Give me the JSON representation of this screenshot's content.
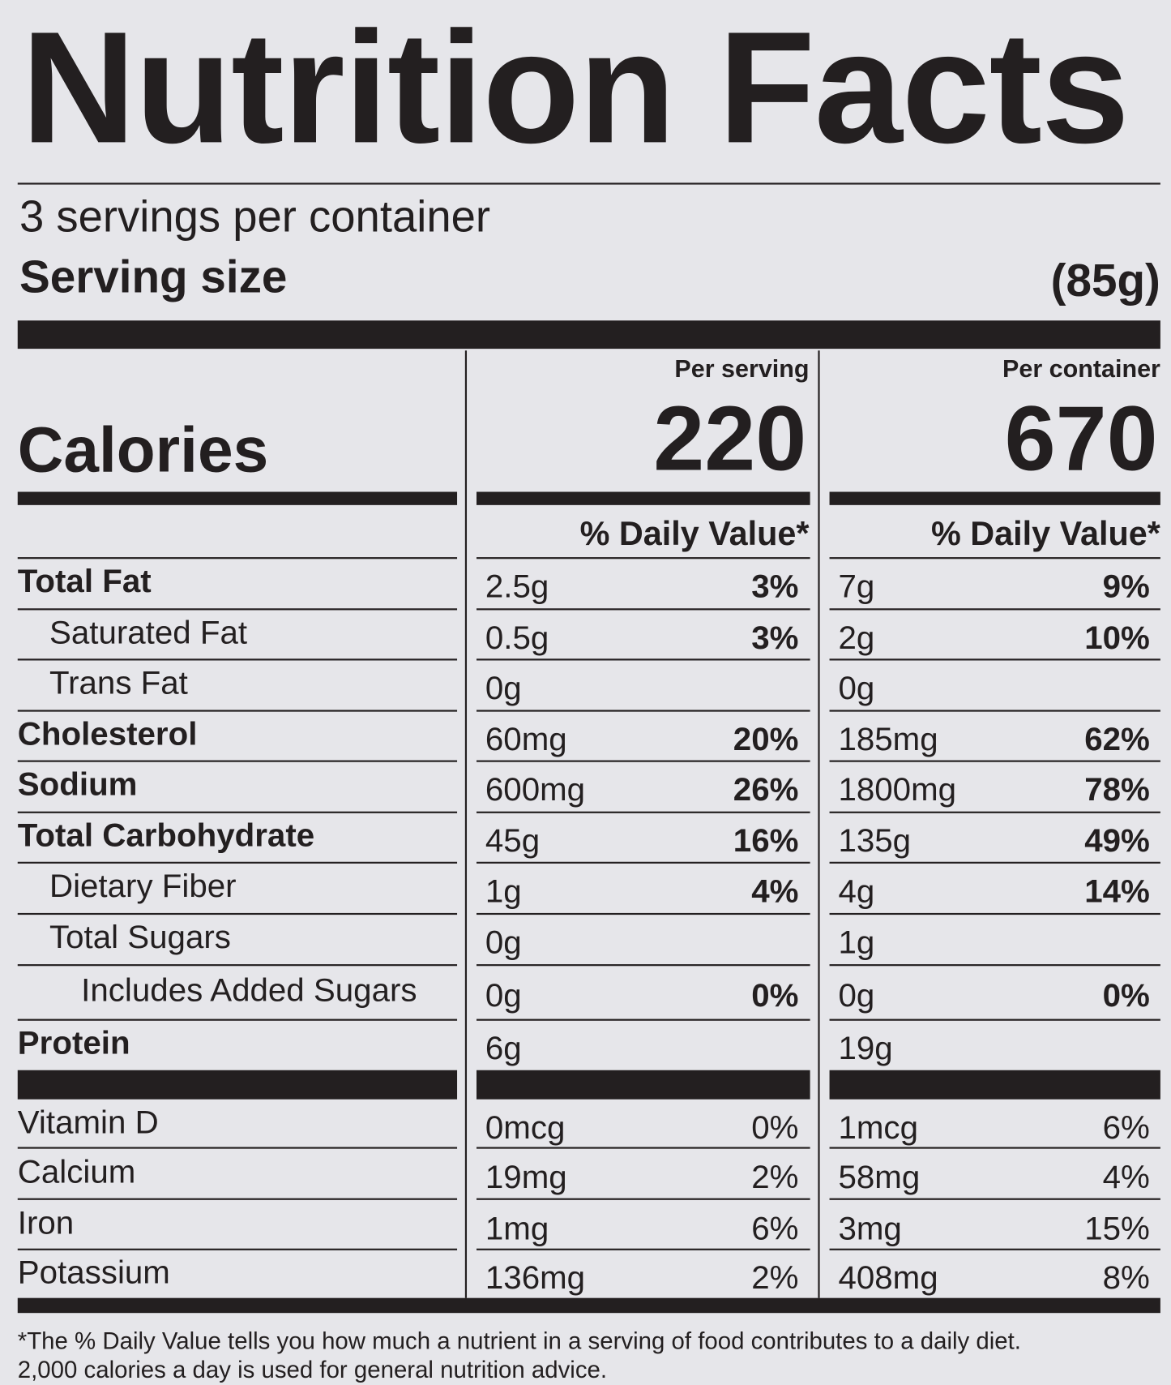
{
  "header": {
    "title": "Nutrition Facts",
    "servings": "3 servings per container",
    "serving_size_label": "Serving size",
    "serving_size": "(85g)"
  },
  "calories_label": "Calories",
  "columns": [
    {
      "heading": "Per serving",
      "calories": "220",
      "dv_heading": "% Daily Value*"
    },
    {
      "heading": "Per container",
      "calories": "670",
      "dv_heading": "% Daily Value*"
    }
  ],
  "nutrients": [
    {
      "name": "Total Fat",
      "serving": {
        "amount": "2.5g",
        "dv": "3%"
      },
      "container": {
        "amount": "7g",
        "dv": "9%"
      }
    },
    {
      "name": "Saturated Fat",
      "serving": {
        "amount": "0.5g",
        "dv": "3%"
      },
      "container": {
        "amount": "2g",
        "dv": "10%"
      }
    },
    {
      "name": "Trans Fat",
      "serving": {
        "amount": "0g"
      },
      "container": {
        "amount": "0g"
      }
    },
    {
      "name": "Cholesterol",
      "serving": {
        "amount": "60mg",
        "dv": "20%"
      },
      "container": {
        "amount": "185mg",
        "dv": "62%"
      }
    },
    {
      "name": "Sodium",
      "serving": {
        "amount": "600mg",
        "dv": "26%"
      },
      "container": {
        "amount": "1800mg",
        "dv": "78%"
      }
    },
    {
      "name": "Total Carbohydrate",
      "serving": {
        "amount": "45g",
        "dv": "16%"
      },
      "container": {
        "amount": "135g",
        "dv": "49%"
      }
    },
    {
      "name": "Dietary Fiber",
      "serving": {
        "amount": "1g",
        "dv": "4%"
      },
      "container": {
        "amount": "4g",
        "dv": "14%"
      }
    },
    {
      "name": "Total Sugars",
      "serving": {
        "amount": "0g"
      },
      "container": {
        "amount": "1g"
      }
    },
    {
      "name": "Includes Added Sugars",
      "serving": {
        "amount": "0g",
        "dv": "0%"
      },
      "container": {
        "amount": "0g",
        "dv": "0%"
      }
    },
    {
      "name": "Protein",
      "serving": {
        "amount": "6g"
      },
      "container": {
        "amount": "19g"
      }
    }
  ],
  "vitamins": [
    {
      "name": "Vitamin D",
      "serving": {
        "amount": "0mcg",
        "dv": "0%"
      },
      "container": {
        "amount": "1mcg",
        "dv": "6%"
      }
    },
    {
      "name": "Calcium",
      "serving": {
        "amount": "19mg",
        "dv": "2%"
      },
      "container": {
        "amount": "58mg",
        "dv": "4%"
      }
    },
    {
      "name": "Iron",
      "serving": {
        "amount": "1mg",
        "dv": "6%"
      },
      "container": {
        "amount": "3mg",
        "dv": "15%"
      }
    },
    {
      "name": "Potassium",
      "serving": {
        "amount": "136mg",
        "dv": "2%"
      },
      "container": {
        "amount": "408mg",
        "dv": "8%"
      }
    }
  ],
  "footnote": [
    "*The % Daily Value tells you how much a nutrient in a serving of food contributes to a daily diet.",
    "2,000 calories a day is used for general nutrition advice."
  ]
}
